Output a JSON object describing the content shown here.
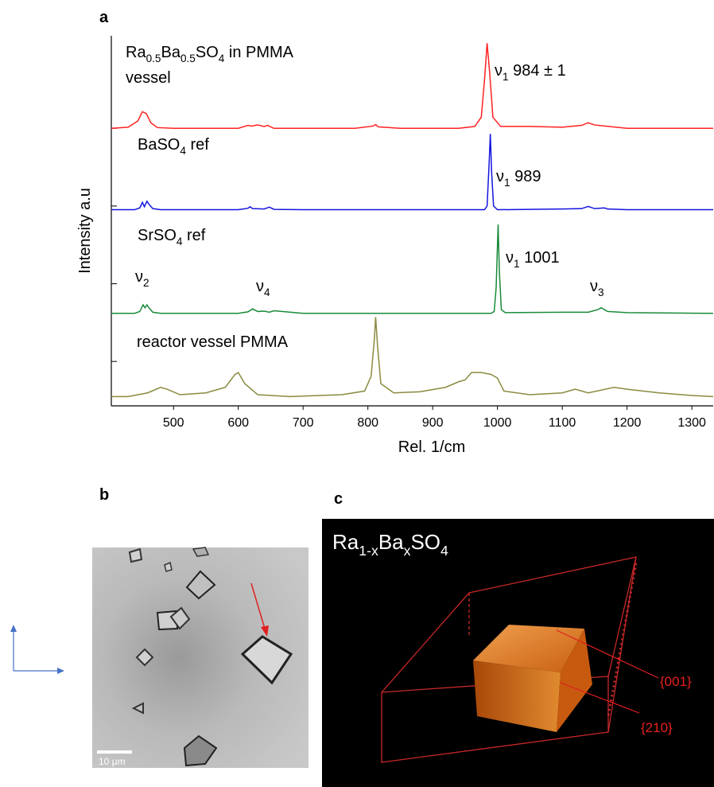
{
  "panel_labels": [
    "a",
    "b",
    "c"
  ],
  "chart_data": {
    "type": "line",
    "y_label": "Intensity a.u",
    "x_label": "Rel. 1/cm",
    "xlim": [
      404,
      1333
    ],
    "xticks": [
      500,
      600,
      700,
      800,
      900,
      1000,
      1100,
      1200,
      1300
    ],
    "ylim": [
      0,
      100
    ],
    "yticks": [
      12,
      33,
      54,
      75
    ],
    "grid": false,
    "series": [
      {
        "color": "#ff2222",
        "x": [
          404,
          430,
          445,
          452,
          458,
          465,
          475,
          500,
          550,
          600,
          615,
          620,
          630,
          640,
          645,
          655,
          700,
          780,
          808,
          812,
          816,
          850,
          940,
          965,
          975,
          980,
          984,
          988,
          993,
          1005,
          1050,
          1100,
          1130,
          1140,
          1150,
          1200,
          1333
        ],
        "values": [
          75,
          75.3,
          77,
          79.5,
          79,
          76.5,
          75.2,
          75,
          75,
          75,
          75.8,
          75.6,
          75.9,
          75.5,
          75.8,
          75,
          75,
          75,
          75.6,
          76,
          75.4,
          75,
          75,
          75.5,
          78,
          88,
          98,
          90,
          78,
          75.5,
          75.5,
          75.3,
          75.8,
          76.5,
          75.9,
          75,
          75
        ]
      },
      {
        "color": "#1414e0",
        "x": [
          404,
          440,
          448,
          452,
          455,
          459,
          462,
          468,
          480,
          600,
          615,
          618,
          622,
          640,
          648,
          655,
          700,
          900,
          980,
          984,
          987,
          989,
          991,
          994,
          1000,
          1100,
          1130,
          1140,
          1150,
          1165,
          1170,
          1200,
          1333
        ],
        "values": [
          53,
          53,
          53.5,
          55,
          53.8,
          55.3,
          54.5,
          53.3,
          53,
          53,
          53.4,
          53.8,
          53.3,
          53.2,
          53.7,
          53.1,
          53,
          53,
          53,
          54,
          65,
          73.5,
          63,
          54,
          53,
          53.2,
          53.3,
          53.9,
          53.3,
          53.5,
          53.2,
          53,
          53
        ]
      },
      {
        "color": "#1a8a3a",
        "x": [
          404,
          440,
          448,
          453,
          456,
          459,
          462,
          468,
          480,
          600,
          615,
          622,
          630,
          640,
          648,
          655,
          700,
          900,
          990,
          995,
          998,
          1001,
          1003,
          1006,
          1012,
          1100,
          1140,
          1155,
          1160,
          1170,
          1200,
          1333
        ],
        "values": [
          25,
          25,
          25.5,
          27.3,
          26.5,
          27.3,
          26.5,
          25.3,
          25,
          25,
          25.4,
          26.2,
          25.5,
          25.6,
          25.3,
          25.7,
          25,
          25,
          25,
          25.5,
          32,
          49,
          36,
          26,
          25.2,
          25.3,
          25.3,
          26,
          26.5,
          25.5,
          25.2,
          25
        ]
      },
      {
        "color": "#8a8a40",
        "x": [
          404,
          430,
          460,
          480,
          490,
          510,
          550,
          580,
          595,
          600,
          610,
          630,
          680,
          760,
          795,
          805,
          810,
          812,
          815,
          820,
          840,
          880,
          920,
          940,
          950,
          960,
          975,
          990,
          1000,
          1010,
          1050,
          1100,
          1120,
          1140,
          1180,
          1200,
          1250,
          1300,
          1333
        ],
        "values": [
          2.5,
          2.5,
          3.5,
          5,
          4.5,
          3,
          3.5,
          5,
          8.5,
          9,
          6,
          3,
          2.5,
          3,
          4,
          8,
          18,
          24,
          16,
          6,
          3.5,
          3.8,
          5,
          6.5,
          7,
          9,
          9,
          8.5,
          7.5,
          4,
          3,
          3.5,
          4.5,
          3.5,
          5,
          4.5,
          3.5,
          2.8,
          2.5
        ]
      }
    ],
    "annotations": [
      [
        "Ra",
        "0.5",
        "Ba",
        "0.5",
        "SO",
        "4",
        " in PMMA"
      ],
      [
        "vessel"
      ],
      [
        "ν",
        "1",
        " 984 ± 1"
      ],
      [
        "BaSO",
        "4",
        " ref"
      ],
      [
        "ν",
        "1",
        " 989"
      ],
      [
        "SrSO",
        "4",
        " ref"
      ],
      [
        "ν",
        "1",
        " 1001"
      ],
      [
        "ν",
        "2"
      ],
      [
        "ν",
        "4"
      ],
      [
        "ν",
        "3"
      ],
      [
        "reactor vessel PMMA"
      ]
    ]
  },
  "micrograph": {
    "scale_bar": "10 μm"
  },
  "render": {
    "formula": [
      "Ra",
      "1-x",
      "Ba",
      "x",
      "SO",
      "4"
    ],
    "faces": [
      "{001}",
      "{210}"
    ]
  }
}
